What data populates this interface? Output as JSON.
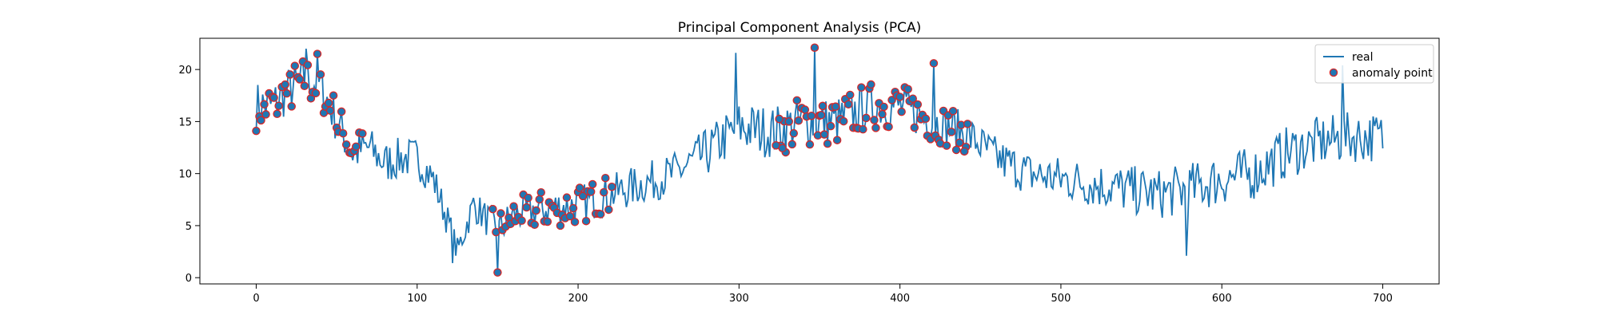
{
  "chart_data": {
    "type": "line",
    "title": "Principal Component Analysis (PCA)",
    "xlabel": "",
    "ylabel": "",
    "xlim": [
      -35,
      735
    ],
    "ylim": [
      -0.6,
      23
    ],
    "xticks": [
      0,
      100,
      200,
      300,
      400,
      500,
      600,
      700
    ],
    "yticks": [
      0,
      5,
      10,
      15,
      20
    ],
    "legend_position": "top-right",
    "grid": false,
    "colors": {
      "line": "#1f77b4",
      "marker_fill": "#1f77b4",
      "marker_edge": "#d62728"
    },
    "series": [
      {
        "name": "real",
        "kind": "line",
        "knots": [
          [
            0,
            16.5
          ],
          [
            10,
            16.5
          ],
          [
            20,
            18.0
          ],
          [
            30,
            19.0
          ],
          [
            40,
            18.5
          ],
          [
            50,
            15.0
          ],
          [
            60,
            12.0
          ],
          [
            70,
            12.5
          ],
          [
            80,
            11.0
          ],
          [
            90,
            11.5
          ],
          [
            100,
            11.5
          ],
          [
            110,
            9.5
          ],
          [
            120,
            5.0
          ],
          [
            125,
            2.5
          ],
          [
            135,
            7.0
          ],
          [
            150,
            4.5
          ],
          [
            160,
            6.0
          ],
          [
            175,
            6.5
          ],
          [
            200,
            7.0
          ],
          [
            230,
            8.5
          ],
          [
            260,
            10.0
          ],
          [
            280,
            12.0
          ],
          [
            300,
            14.5
          ],
          [
            320,
            14.0
          ],
          [
            340,
            15.0
          ],
          [
            360,
            15.0
          ],
          [
            380,
            16.5
          ],
          [
            400,
            16.5
          ],
          [
            420,
            15.0
          ],
          [
            440,
            14.0
          ],
          [
            460,
            11.5
          ],
          [
            480,
            10.0
          ],
          [
            500,
            9.5
          ],
          [
            520,
            9.0
          ],
          [
            540,
            8.5
          ],
          [
            560,
            8.0
          ],
          [
            580,
            8.5
          ],
          [
            600,
            9.5
          ],
          [
            620,
            10.0
          ],
          [
            640,
            12.0
          ],
          [
            660,
            13.0
          ],
          [
            680,
            13.5
          ],
          [
            700,
            13.5
          ]
        ],
        "noise": [
          [
            0,
            2.4
          ],
          [
            100,
            2.0
          ],
          [
            125,
            1.4
          ],
          [
            150,
            1.8
          ],
          [
            250,
            2.0
          ],
          [
            300,
            2.6
          ],
          [
            350,
            2.4
          ],
          [
            440,
            2.0
          ],
          [
            500,
            2.2
          ],
          [
            600,
            2.6
          ],
          [
            700,
            2.4
          ]
        ],
        "spikes": [
          [
            31,
            22.0
          ],
          [
            38,
            21.5
          ],
          [
            122,
            1.4
          ],
          [
            150,
            0.5
          ],
          [
            298,
            21.6
          ],
          [
            347,
            22.1
          ],
          [
            421,
            20.6
          ],
          [
            578,
            2.1
          ],
          [
            675,
            20.4
          ]
        ],
        "x_range": [
          0,
          700
        ],
        "seed": 7
      },
      {
        "name": "anomaly point",
        "kind": "scatter",
        "x_ranges": [
          [
            0,
            66
          ],
          [
            147,
            222
          ],
          [
            323,
            443
          ]
        ],
        "x_extra": [
          323,
          325,
          327,
          351,
          352,
          440,
          442
        ],
        "step": 1.6
      }
    ]
  }
}
